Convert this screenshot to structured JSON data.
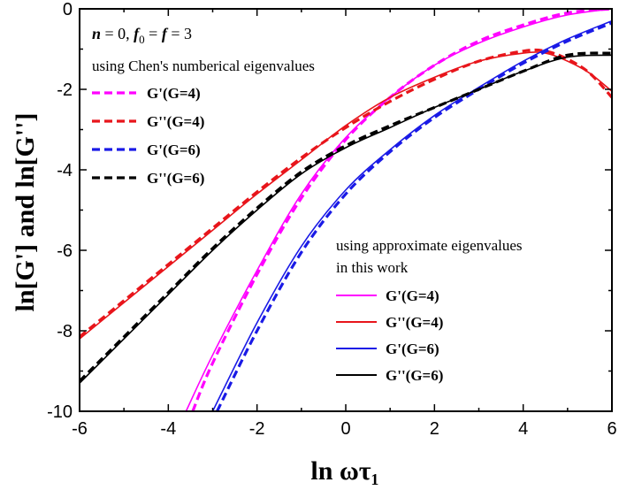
{
  "chart_data": {
    "type": "line",
    "xlabel": "ln ωτ₁",
    "ylabel": "ln[G'] and ln[G'']",
    "xlim": [
      -6,
      6
    ],
    "ylim": [
      -10,
      0
    ],
    "xticks": [
      "-6",
      "-4",
      "-2",
      "0",
      "2",
      "4",
      "6"
    ],
    "yticks": [
      "0",
      "-2",
      "-4",
      "-6",
      "-8",
      "-10"
    ],
    "annotation": {
      "parts": [
        "n",
        " = 0,  ",
        "f",
        "0",
        " = ",
        "f",
        " = 3"
      ]
    },
    "legend_dashed": {
      "title": "using Chen's numberical eigenvalues",
      "placement": "top-left",
      "entries": [
        {
          "label": "G'(G=4)",
          "color": "#ff00ff"
        },
        {
          "label": "G''(G=4)",
          "color": "#e8151b"
        },
        {
          "label": "G'(G=6)",
          "color": "#1a1ae6"
        },
        {
          "label": "G''(G=6)",
          "color": "#000000"
        }
      ]
    },
    "legend_solid": {
      "title_lines": [
        "using approximate eigenvalues",
        "in this work"
      ],
      "placement": "bottom-right",
      "entries": [
        {
          "label": "G'(G=4)",
          "color": "#ff00ff"
        },
        {
          "label": "G''(G=4)",
          "color": "#e8151b"
        },
        {
          "label": "G'(G=6)",
          "color": "#1a1ae6"
        },
        {
          "label": "G''(G=6)",
          "color": "#000000"
        }
      ]
    },
    "series": [
      {
        "color": "#ff00ff",
        "style": "solid",
        "x": [
          -3.6,
          -3,
          -2,
          -1,
          0,
          1,
          2,
          3,
          4,
          5,
          6
        ],
        "y": [
          -10,
          -8.6,
          -6.5,
          -4.6,
          -3.2,
          -2.2,
          -1.4,
          -0.85,
          -0.45,
          -0.15,
          0
        ]
      },
      {
        "color": "#ff00ff",
        "style": "dashed",
        "x": [
          -3.45,
          -3,
          -2,
          -1,
          0,
          1,
          2,
          3,
          4,
          5,
          6
        ],
        "y": [
          -10,
          -8.8,
          -6.6,
          -4.7,
          -3.25,
          -2.2,
          -1.4,
          -0.8,
          -0.4,
          -0.1,
          0
        ]
      },
      {
        "color": "#e8151b",
        "style": "solid",
        "x": [
          -6,
          -5,
          -4,
          -3,
          -2,
          -1,
          0,
          1,
          2,
          3,
          4,
          4.5,
          5,
          5.5,
          6
        ],
        "y": [
          -8.2,
          -7.3,
          -6.4,
          -5.5,
          -4.6,
          -3.75,
          -2.9,
          -2.2,
          -1.7,
          -1.3,
          -1.1,
          -1.1,
          -1.3,
          -1.6,
          -2.05
        ]
      },
      {
        "color": "#e8151b",
        "style": "dashed",
        "x": [
          -6,
          -5,
          -4,
          -3,
          -2,
          -1,
          0,
          1,
          2,
          3,
          4,
          4.5,
          5,
          5.5,
          6
        ],
        "y": [
          -8.15,
          -7.25,
          -6.35,
          -5.45,
          -4.55,
          -3.7,
          -2.95,
          -2.3,
          -1.75,
          -1.3,
          -1.05,
          -1.05,
          -1.25,
          -1.6,
          -2.2
        ]
      },
      {
        "color": "#1a1ae6",
        "style": "solid",
        "x": [
          -3,
          -2,
          -1,
          0,
          1,
          2,
          3,
          4,
          5,
          6
        ],
        "y": [
          -10,
          -7.8,
          -5.9,
          -4.5,
          -3.5,
          -2.65,
          -1.95,
          -1.3,
          -0.75,
          -0.3
        ]
      },
      {
        "color": "#1a1ae6",
        "style": "dashed",
        "x": [
          -2.9,
          -2,
          -1,
          0,
          1,
          2,
          3,
          4,
          5,
          6
        ],
        "y": [
          -10,
          -8.0,
          -6.05,
          -4.6,
          -3.55,
          -2.7,
          -2.0,
          -1.35,
          -0.8,
          -0.35
        ]
      },
      {
        "color": "#000000",
        "style": "solid",
        "x": [
          -6,
          -5,
          -4,
          -3,
          -2,
          -1,
          0,
          1,
          2,
          3,
          4,
          5,
          6
        ],
        "y": [
          -9.3,
          -8.2,
          -7.1,
          -6.0,
          -5.0,
          -4.1,
          -3.45,
          -2.95,
          -2.45,
          -2.0,
          -1.55,
          -1.2,
          -1.15
        ]
      },
      {
        "color": "#000000",
        "style": "dashed",
        "x": [
          -6,
          -5,
          -4,
          -3,
          -2,
          -1,
          0,
          1,
          2,
          3,
          4,
          5,
          6
        ],
        "y": [
          -9.25,
          -8.15,
          -7.05,
          -5.95,
          -4.95,
          -4.05,
          -3.4,
          -2.9,
          -2.45,
          -2.0,
          -1.55,
          -1.15,
          -1.1
        ]
      }
    ]
  }
}
